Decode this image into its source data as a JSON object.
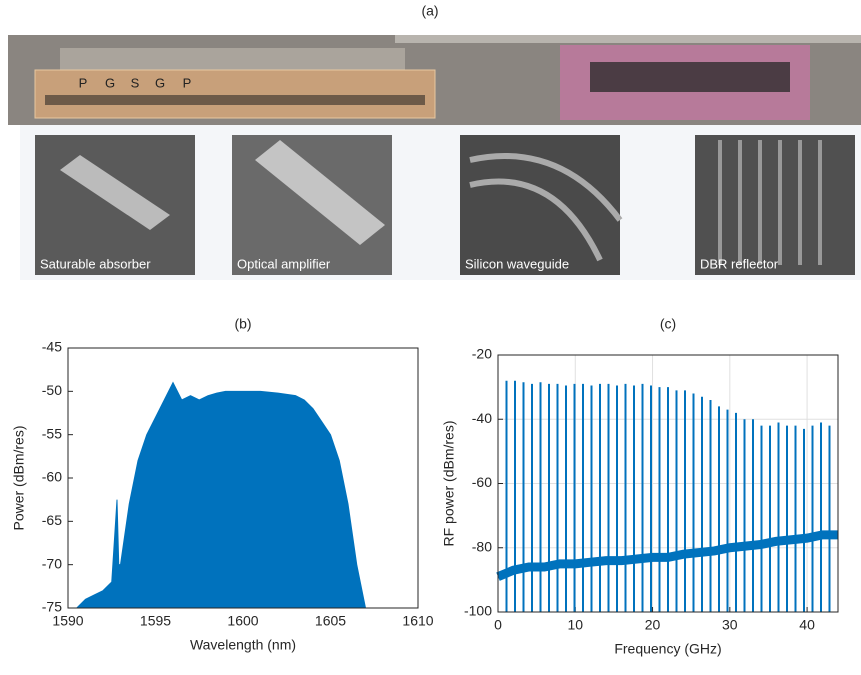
{
  "figure_a": {
    "title": "(a)",
    "pad_labels": [
      "P",
      "G",
      "S",
      "G",
      "P"
    ],
    "insets": [
      "Saturable absorber",
      "Optical amplifier",
      "Silicon waveguide",
      "DBR reflector"
    ]
  },
  "chart_data": [
    {
      "type": "area",
      "title": "(b)",
      "xlabel": "Wavelength (nm)",
      "ylabel": "Power (dBm/res)",
      "color": "#0072bd",
      "grid": false,
      "xlim": [
        1590,
        1610
      ],
      "xticks": [
        1590,
        1595,
        1600,
        1605,
        1610
      ],
      "ylim": [
        -75,
        -45
      ],
      "yticks": [
        -75,
        -70,
        -65,
        -60,
        -55,
        -50,
        -45
      ],
      "x": [
        1590.5,
        1591,
        1591.5,
        1592,
        1592.5,
        1592.8,
        1592.9,
        1593,
        1593.5,
        1594,
        1594.5,
        1595,
        1595.5,
        1596,
        1596.5,
        1597,
        1597.5,
        1598,
        1598.5,
        1599,
        1600,
        1601,
        1602,
        1603,
        1603.5,
        1604,
        1604.5,
        1605,
        1605.5,
        1606,
        1606.5,
        1607
      ],
      "values": [
        -75,
        -74,
        -73.5,
        -73,
        -72,
        -62.5,
        -70,
        -70,
        -63,
        -58,
        -55,
        -53,
        -51,
        -49,
        -51,
        -50.5,
        -51,
        -50.5,
        -50.2,
        -50,
        -50,
        -50,
        -50.2,
        -50.5,
        -51,
        -52,
        -53.5,
        -55,
        -58,
        -63,
        -70,
        -75
      ]
    },
    {
      "type": "spectrum",
      "title": "(c)",
      "xlabel": "Frequency (GHz)",
      "ylabel": "RF power (dBm/res)",
      "color": "#0072bd",
      "grid": true,
      "xlim": [
        0,
        44
      ],
      "xticks": [
        0,
        10,
        20,
        30,
        40
      ],
      "ylim": [
        -100,
        -20
      ],
      "yticks": [
        -100,
        -80,
        -60,
        -40,
        -20
      ],
      "series": [
        {
          "style": "stem",
          "x": [
            1.1,
            2.2,
            3.3,
            4.4,
            5.5,
            6.6,
            7.7,
            8.8,
            9.9,
            11,
            12.1,
            13.2,
            14.3,
            15.4,
            16.5,
            17.6,
            18.7,
            19.8,
            20.9,
            22,
            23.1,
            24.2,
            25.3,
            26.4,
            27.5,
            28.6,
            29.7,
            30.8,
            31.9,
            33,
            34.1,
            35.2,
            36.3,
            37.4,
            38.5,
            39.6,
            40.7,
            41.8,
            42.9
          ],
          "values": [
            -28,
            -28,
            -28.5,
            -29,
            -28.5,
            -29,
            -29,
            -29.5,
            -29,
            -29,
            -29.5,
            -29,
            -29,
            -29.5,
            -29,
            -29.5,
            -29,
            -29.5,
            -30,
            -30,
            -31,
            -31,
            -32,
            -33,
            -34,
            -36,
            -37,
            -38,
            -40,
            -40,
            -42,
            -42,
            -41,
            -42,
            -42,
            -43,
            -42,
            -41,
            -42
          ]
        },
        {
          "style": "line",
          "x": [
            0,
            2,
            4,
            6,
            8,
            10,
            12,
            14,
            16,
            18,
            20,
            22,
            24,
            26,
            28,
            30,
            32,
            34,
            36,
            38,
            40,
            42,
            44
          ],
          "values": [
            -89,
            -87,
            -86,
            -86,
            -85,
            -85,
            -84.5,
            -84,
            -84,
            -83.5,
            -83,
            -83,
            -82,
            -81.5,
            -81,
            -80,
            -79.5,
            -79,
            -78,
            -77.5,
            -77,
            -76,
            -76
          ]
        }
      ]
    }
  ]
}
